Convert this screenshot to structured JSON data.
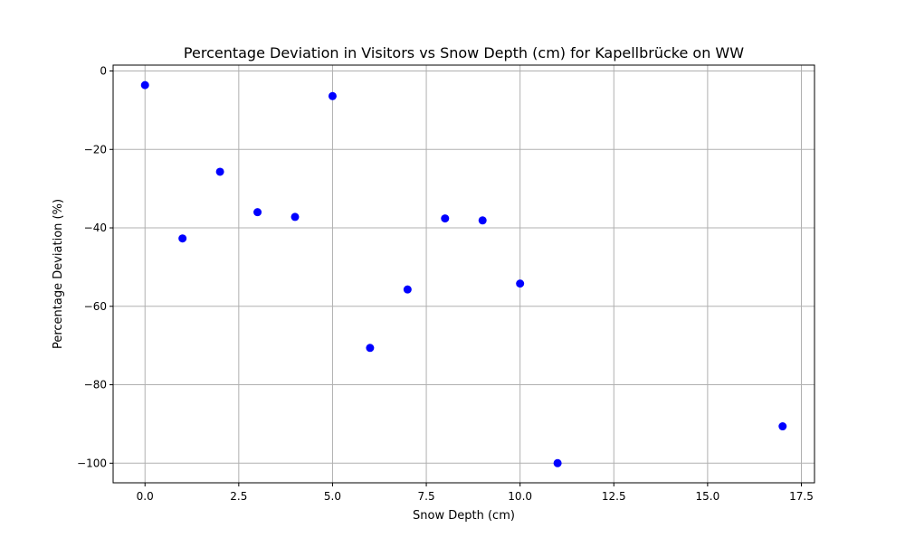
{
  "chart_data": {
    "type": "scatter",
    "title": "Percentage Deviation in Visitors vs Snow Depth (cm) for Kapellbrücke on WW",
    "xlabel": "Snow Depth (cm)",
    "ylabel": "Percentage Deviation (%)",
    "xlim": [
      -0.85,
      17.85
    ],
    "ylim": [
      -105,
      1.5
    ],
    "xticks": [
      0.0,
      2.5,
      5.0,
      7.5,
      10.0,
      12.5,
      15.0,
      17.5
    ],
    "xtick_labels": [
      "0.0",
      "2.5",
      "5.0",
      "7.5",
      "10.0",
      "12.5",
      "15.0",
      "17.5"
    ],
    "yticks": [
      0,
      -20,
      -40,
      -60,
      -80,
      -100
    ],
    "ytick_labels": [
      "0",
      "−20",
      "−40",
      "−60",
      "−80",
      "−100"
    ],
    "grid": true,
    "marker_color": "#0000ff",
    "points": [
      {
        "x": 0,
        "y": -3.6
      },
      {
        "x": 1,
        "y": -42.7
      },
      {
        "x": 2,
        "y": -25.7
      },
      {
        "x": 3,
        "y": -36.0
      },
      {
        "x": 4,
        "y": -37.2
      },
      {
        "x": 5,
        "y": -6.4
      },
      {
        "x": 6,
        "y": -70.6
      },
      {
        "x": 7,
        "y": -55.7
      },
      {
        "x": 8,
        "y": -37.6
      },
      {
        "x": 9,
        "y": -38.1
      },
      {
        "x": 10,
        "y": -54.2
      },
      {
        "x": 11,
        "y": -100.0
      },
      {
        "x": 17,
        "y": -90.6
      }
    ]
  }
}
